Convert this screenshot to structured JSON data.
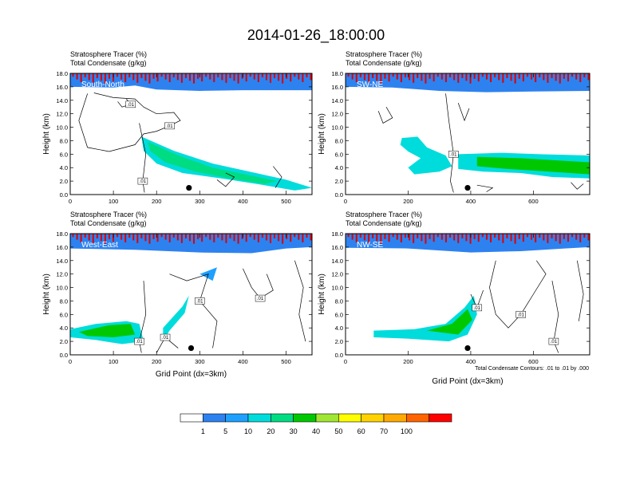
{
  "title": "2014-01-26_18:00:00",
  "colorbar": {
    "labels": [
      "1",
      "5",
      "10",
      "20",
      "30",
      "40",
      "50",
      "60",
      "70",
      "100"
    ],
    "colors": [
      "#ffffff",
      "#2d82f0",
      "#1ea0ff",
      "#00dcdc",
      "#00dc82",
      "#00c800",
      "#a0e632",
      "#ffff00",
      "#ffd200",
      "#ffaa00",
      "#ff6400",
      "#ff0000"
    ]
  },
  "contour_note": "Total Condensate Contours: .01 to .01 by .000",
  "chart_data": [
    {
      "type": "heatmap",
      "panel_label": "South-North",
      "line1": "Stratosphere Tracer   (%)",
      "line2": "Total Condensate   (g/kg)",
      "ylabel": "Height (km)",
      "xlabel": "",
      "xlim": [
        0,
        560
      ],
      "ylim": [
        0,
        18
      ],
      "xticks": [
        "0",
        "100",
        "200",
        "300",
        "400",
        "500"
      ],
      "yticks": [
        "0.0",
        "2.0",
        "4.0",
        "6.0",
        "8.0",
        "10.0",
        "12.0",
        "14.0",
        "16.0",
        "18.0"
      ],
      "contour_labels": [
        ".01",
        ".01",
        ".01"
      ],
      "marker": {
        "x": 275,
        "y": 1.0
      },
      "tracer_top": [
        [
          0,
          16.4
        ],
        [
          100,
          16.3
        ],
        [
          150,
          16.6
        ],
        [
          200,
          16.0
        ],
        [
          300,
          15.8
        ],
        [
          400,
          15.9
        ],
        [
          500,
          15.9
        ],
        [
          560,
          15.9
        ]
      ],
      "plumes": [
        {
          "pts": [
            [
              165,
              8.6
            ],
            [
              240,
              6.5
            ],
            [
              330,
              4.6
            ],
            [
              430,
              3.2
            ],
            [
              500,
              2.2
            ],
            [
              560,
              1.0
            ],
            [
              520,
              0.6
            ],
            [
              440,
              1.5
            ],
            [
              350,
              2.4
            ],
            [
              260,
              3.2
            ],
            [
              200,
              4.6
            ],
            [
              170,
              6.5
            ]
          ],
          "level": 3
        },
        {
          "pts": [
            [
              180,
              7.8
            ],
            [
              250,
              5.8
            ],
            [
              330,
              4.0
            ],
            [
              420,
              2.8
            ],
            [
              480,
              2.0
            ],
            [
              450,
              1.6
            ],
            [
              370,
              2.4
            ],
            [
              290,
              3.4
            ],
            [
              220,
              4.8
            ],
            [
              185,
              6.5
            ]
          ],
          "level": 4
        }
      ],
      "contours": [
        [
          [
            40,
            15.0
          ],
          [
            20,
            11.0
          ],
          [
            40,
            7.0
          ],
          [
            90,
            6.4
          ],
          [
            150,
            7.4
          ],
          [
            170,
            9.0
          ],
          [
            200,
            9.4
          ],
          [
            230,
            10.2
          ],
          [
            255,
            11.0
          ],
          [
            240,
            12.2
          ],
          [
            200,
            12.0
          ],
          [
            170,
            13.0
          ],
          [
            150,
            14.2
          ],
          [
            100,
            14.4
          ],
          [
            55,
            15.1
          ]
        ],
        [
          [
            160,
            10.6
          ],
          [
            175,
            6.0
          ],
          [
            168,
            2.0
          ],
          [
            172,
            0.3
          ]
        ],
        [
          [
            110,
            13.8
          ],
          [
            120,
            13.0
          ],
          [
            140,
            13.4
          ],
          [
            130,
            14.2
          ]
        ],
        [
          [
            340,
            2.2
          ],
          [
            360,
            1.2
          ],
          [
            380,
            2.6
          ],
          [
            360,
            3.2
          ]
        ],
        [
          [
            470,
            4.2
          ],
          [
            490,
            2.6
          ],
          [
            475,
            1.0
          ]
        ]
      ]
    },
    {
      "type": "heatmap",
      "panel_label": "SW-NE",
      "line1": "Stratosphere Tracer   (%)",
      "line2": "Total Condensate   (g/kg)",
      "ylabel": "Height (km)",
      "xlabel": "",
      "xlim": [
        0,
        780
      ],
      "ylim": [
        0,
        18
      ],
      "xticks": [
        "0",
        "200",
        "400",
        "600"
      ],
      "yticks": [
        "0.0",
        "2.0",
        "4.0",
        "6.0",
        "8.0",
        "10.0",
        "12.0",
        "14.0",
        "16.0",
        "18.0"
      ],
      "contour_labels": [
        ".01"
      ],
      "marker": {
        "x": 390,
        "y": 1.0
      },
      "tracer_top": [
        [
          0,
          16.4
        ],
        [
          150,
          16.3
        ],
        [
          300,
          15.8
        ],
        [
          450,
          15.6
        ],
        [
          600,
          15.7
        ],
        [
          780,
          15.8
        ]
      ],
      "plumes": [
        {
          "pts": [
            [
              180,
              8.4
            ],
            [
              230,
              8.6
            ],
            [
              260,
              7.0
            ],
            [
              320,
              5.8
            ],
            [
              340,
              4.2
            ],
            [
              300,
              3.4
            ],
            [
              220,
              3.0
            ],
            [
              200,
              4.0
            ],
            [
              240,
              5.4
            ],
            [
              200,
              6.4
            ],
            [
              175,
              7.4
            ]
          ],
          "level": 3
        },
        {
          "pts": [
            [
              360,
              6.0
            ],
            [
              500,
              6.2
            ],
            [
              620,
              6.0
            ],
            [
              780,
              5.8
            ],
            [
              780,
              2.4
            ],
            [
              660,
              2.6
            ],
            [
              560,
              3.2
            ],
            [
              440,
              3.4
            ],
            [
              360,
              3.8
            ]
          ],
          "level": 3
        },
        {
          "pts": [
            [
              420,
              5.6
            ],
            [
              560,
              5.4
            ],
            [
              700,
              5.0
            ],
            [
              780,
              4.8
            ],
            [
              780,
              3.0
            ],
            [
              650,
              3.4
            ],
            [
              520,
              3.8
            ],
            [
              420,
              4.2
            ]
          ],
          "level": 5
        }
      ],
      "contours": [
        [
          [
            320,
            15.0
          ],
          [
            330,
            11.0
          ],
          [
            345,
            6.0
          ],
          [
            335,
            2.0
          ],
          [
            345,
            0.3
          ]
        ],
        [
          [
            105,
            12.4
          ],
          [
            120,
            10.6
          ],
          [
            150,
            11.4
          ],
          [
            130,
            13.0
          ]
        ],
        [
          [
            360,
            13.6
          ],
          [
            380,
            11.0
          ],
          [
            395,
            12.8
          ]
        ],
        [
          [
            420,
            1.4
          ],
          [
            470,
            1.0
          ],
          [
            450,
            0.4
          ]
        ],
        [
          [
            720,
            1.8
          ],
          [
            740,
            0.8
          ],
          [
            760,
            1.6
          ]
        ]
      ]
    },
    {
      "type": "heatmap",
      "panel_label": "West-East",
      "line1": "Stratosphere Tracer   (%)",
      "line2": "Total Condensate   (g/kg)",
      "ylabel": "Height (km)",
      "xlabel": "Grid Point (dx=3km)",
      "xlim": [
        0,
        560
      ],
      "ylim": [
        0,
        18
      ],
      "xticks": [
        "0",
        "100",
        "200",
        "300",
        "400",
        "500"
      ],
      "yticks": [
        "0.0",
        "2.0",
        "4.0",
        "6.0",
        "8.0",
        "10.0",
        "12.0",
        "14.0",
        "16.0",
        "18.0"
      ],
      "contour_labels": [
        ".01",
        ".01",
        ".01",
        ".01"
      ],
      "marker": {
        "x": 280,
        "y": 1.0
      },
      "tracer_top": [
        [
          0,
          16.2
        ],
        [
          150,
          16.0
        ],
        [
          300,
          15.6
        ],
        [
          420,
          15.5
        ],
        [
          500,
          16.2
        ],
        [
          560,
          16.4
        ]
      ],
      "plumes": [
        {
          "pts": [
            [
              0,
              3.8
            ],
            [
              60,
              4.6
            ],
            [
              130,
              5.0
            ],
            [
              160,
              4.6
            ],
            [
              170,
              2.0
            ],
            [
              120,
              1.6
            ],
            [
              60,
              2.2
            ],
            [
              0,
              2.6
            ]
          ],
          "level": 3
        },
        {
          "pts": [
            [
              20,
              3.4
            ],
            [
              90,
              4.4
            ],
            [
              140,
              4.6
            ],
            [
              150,
              3.0
            ],
            [
              100,
              2.6
            ],
            [
              40,
              2.8
            ]
          ],
          "level": 5
        },
        {
          "pts": [
            [
              215,
              4.0
            ],
            [
              260,
              7.2
            ],
            [
              275,
              8.8
            ],
            [
              265,
              6.2
            ],
            [
              230,
              3.6
            ],
            [
              215,
              2.0
            ]
          ],
          "level": 3
        },
        {
          "pts": [
            [
              300,
              12.0
            ],
            [
              330,
              11.0
            ],
            [
              340,
              13.0
            ]
          ],
          "level": 2
        }
      ],
      "contours": [
        [
          [
            170,
            11.0
          ],
          [
            175,
            6.0
          ],
          [
            160,
            2.0
          ],
          [
            165,
            0.3
          ]
        ],
        [
          [
            230,
            12.0
          ],
          [
            270,
            11.0
          ],
          [
            320,
            12.0
          ],
          [
            300,
            8.0
          ],
          [
            340,
            5.0
          ],
          [
            330,
            1.0
          ]
        ],
        [
          [
            400,
            12.8
          ],
          [
            420,
            10.0
          ],
          [
            440,
            8.4
          ],
          [
            470,
            9.6
          ],
          [
            455,
            12.0
          ]
        ],
        [
          [
            200,
            0.3
          ],
          [
            220,
            2.6
          ],
          [
            250,
            1.0
          ]
        ],
        [
          [
            520,
            14.0
          ],
          [
            540,
            10.0
          ],
          [
            530,
            6.0
          ],
          [
            545,
            2.0
          ]
        ]
      ]
    },
    {
      "type": "heatmap",
      "panel_label": "NW-SE",
      "line1": "Stratosphere Tracer   (%)",
      "line2": "Total Condensate   (g/kg)",
      "ylabel": "Height (km)",
      "xlabel": "Grid Point (dx=3km)",
      "xlim": [
        0,
        780
      ],
      "ylim": [
        0,
        18
      ],
      "xticks": [
        "0",
        "200",
        "400",
        "600"
      ],
      "yticks": [
        "0.0",
        "2.0",
        "4.0",
        "6.0",
        "8.0",
        "10.0",
        "12.0",
        "14.0",
        "16.0",
        "18.0"
      ],
      "contour_labels": [
        ".01",
        ".01",
        ".01"
      ],
      "marker": {
        "x": 390,
        "y": 1.0
      },
      "tracer_top": [
        [
          0,
          16.3
        ],
        [
          200,
          16.2
        ],
        [
          400,
          15.6
        ],
        [
          560,
          15.8
        ],
        [
          700,
          16.2
        ],
        [
          780,
          16.4
        ]
      ],
      "plumes": [
        {
          "pts": [
            [
              90,
              3.6
            ],
            [
              220,
              3.8
            ],
            [
              320,
              4.6
            ],
            [
              380,
              7.0
            ],
            [
              410,
              8.8
            ],
            [
              420,
              6.0
            ],
            [
              390,
              3.0
            ],
            [
              330,
              2.0
            ],
            [
              200,
              2.4
            ],
            [
              90,
              2.6
            ]
          ],
          "level": 3
        },
        {
          "pts": [
            [
              260,
              3.6
            ],
            [
              340,
              4.6
            ],
            [
              390,
              6.8
            ],
            [
              405,
              5.2
            ],
            [
              360,
              3.0
            ]
          ],
          "level": 5
        }
      ],
      "contours": [
        [
          [
            480,
            14.0
          ],
          [
            460,
            10.0
          ],
          [
            480,
            6.0
          ],
          [
            520,
            4.0
          ],
          [
            560,
            6.0
          ],
          [
            600,
            9.0
          ],
          [
            640,
            12.0
          ],
          [
            610,
            14.0
          ]
        ],
        [
          [
            400,
            9.0
          ],
          [
            420,
            7.0
          ],
          [
            440,
            9.6
          ]
        ],
        [
          [
            660,
            11.0
          ],
          [
            680,
            6.0
          ],
          [
            665,
            2.0
          ],
          [
            680,
            0.3
          ]
        ],
        [
          [
            740,
            14.0
          ],
          [
            760,
            9.0
          ],
          [
            745,
            5.0
          ]
        ]
      ]
    }
  ]
}
